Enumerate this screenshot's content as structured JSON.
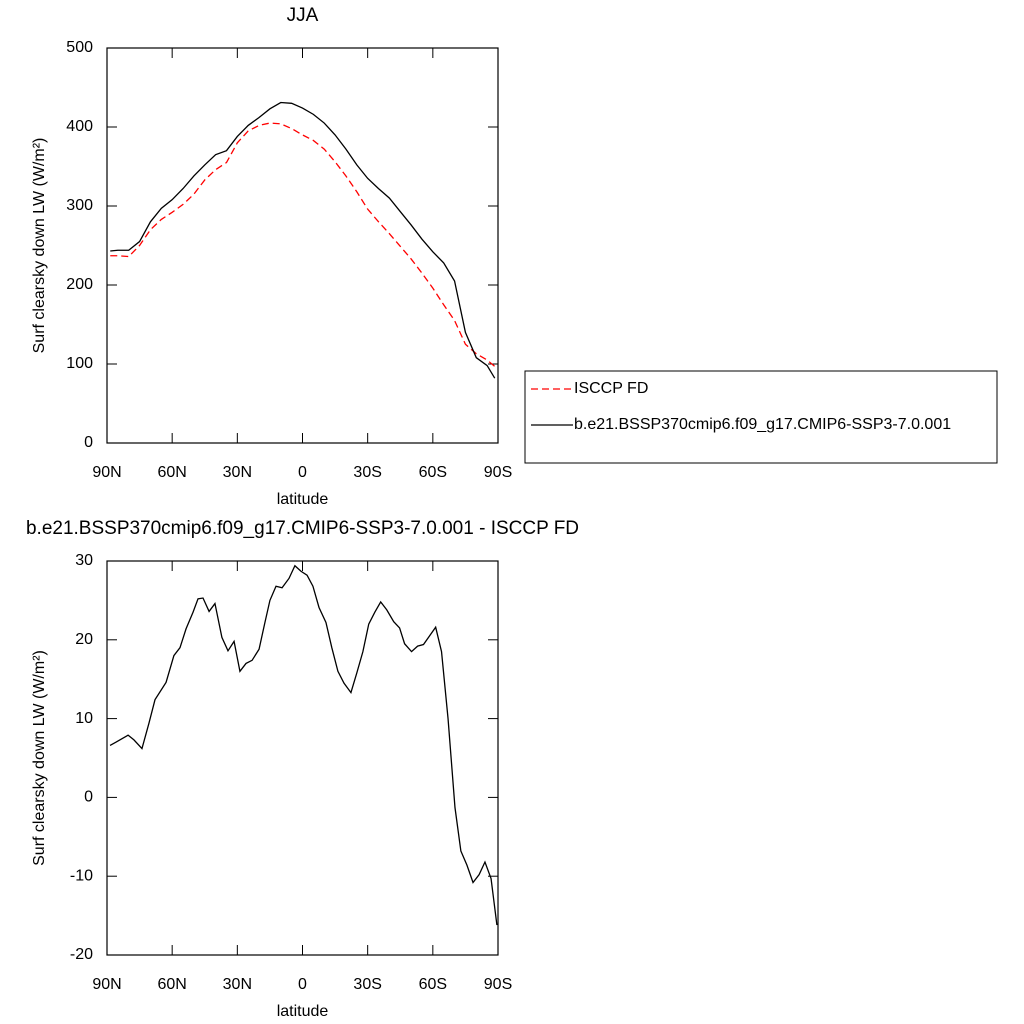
{
  "chart_data": [
    {
      "type": "line",
      "title": "JJA",
      "x_label": "latitude",
      "y_label": "Surf clearsky down LW (W/m²)",
      "x": [
        88.5,
        85,
        80,
        75,
        70,
        65,
        60,
        55,
        50,
        45,
        40,
        35,
        30,
        25,
        20,
        15,
        10,
        5,
        0,
        -5,
        -10,
        -15,
        -20,
        -25,
        -30,
        -35,
        -40,
        -45,
        -50,
        -55,
        -60,
        -65,
        -70,
        -75,
        -80,
        -85,
        -88.5
      ],
      "series": [
        {
          "name": "ISCCP FD",
          "color": "#ff0000",
          "dashed": true,
          "values": [
            237,
            237,
            236,
            250,
            270,
            283,
            292,
            302,
            315,
            333,
            346,
            355,
            380,
            395,
            402,
            405,
            404,
            398,
            390,
            383,
            372,
            356,
            338,
            318,
            296,
            280,
            265,
            249,
            233,
            215,
            196,
            175,
            155,
            125,
            113,
            105,
            97
          ]
        },
        {
          "name": "b.e21.BSSP370cmip6.f09_g17.CMIP6-SSP3-7.0.001",
          "color": "#000000",
          "dashed": false,
          "values": [
            243,
            244,
            244,
            255,
            280,
            297,
            308,
            322,
            338,
            352,
            365,
            370,
            388,
            402,
            412,
            423,
            431,
            430,
            424,
            416,
            405,
            390,
            372,
            352,
            335,
            322,
            310,
            293,
            276,
            258,
            242,
            228,
            205,
            140,
            108,
            98,
            82
          ]
        }
      ],
      "xlim": [
        90,
        -90
      ],
      "xticks": [
        {
          "value": 90,
          "label": "90N"
        },
        {
          "value": 60,
          "label": "60N"
        },
        {
          "value": 30,
          "label": "30N"
        },
        0,
        {
          "value": -30,
          "label": "30S"
        },
        {
          "value": -60,
          "label": "60S"
        },
        {
          "value": -90,
          "label": "90S"
        }
      ],
      "ylim": [
        0,
        500
      ],
      "yticks": [
        0,
        100,
        200,
        300,
        400,
        500
      ],
      "legend": "right"
    },
    {
      "type": "line",
      "title": "b.e21.BSSP370cmip6.f09_g17.CMIP6-SSP3-7.0.001 - ISCCP FD",
      "x_label": "latitude",
      "y_label": "Surf clearsky down LW (W/m²)",
      "x": [
        88.6,
        85.9,
        80.3,
        77.6,
        73.9,
        70.7,
        67.9,
        62.8,
        59.2,
        56.4,
        53.6,
        50.4,
        48.1,
        45.8,
        43,
        40.3,
        37.1,
        34.3,
        31.5,
        28.8,
        26,
        23.2,
        20,
        17.3,
        15,
        12.2,
        9.4,
        6.2,
        3.5,
        0.7,
        -2.1,
        -4.8,
        -7.6,
        -10.8,
        -13.5,
        -16.3,
        -19.1,
        -22.3,
        -25,
        -27.8,
        -30.5,
        -33.3,
        -36,
        -38.8,
        -42,
        -44.7,
        -47,
        -50.2,
        -53,
        -55.7,
        -58.5,
        -61.3,
        -64,
        -67,
        -70.2,
        -72.9,
        -75.7,
        -78.5,
        -81.3,
        -84,
        -86.8,
        -89.5
      ],
      "series": [
        {
          "color": "#000000",
          "dashed": false,
          "values": [
            6.6,
            7,
            7.9,
            7.3,
            6.2,
            9.4,
            12.4,
            14.6,
            18,
            19,
            21.4,
            23.5,
            25.2,
            25.3,
            23.6,
            24.6,
            20.3,
            18.6,
            19.8,
            16,
            17,
            17.4,
            18.8,
            22.2,
            25,
            26.8,
            26.6,
            27.8,
            29.4,
            28.7,
            28.2,
            26.8,
            24.1,
            22.2,
            19,
            16,
            14.5,
            13.3,
            15.8,
            18.5,
            22,
            23.5,
            24.8,
            23.8,
            22.3,
            21.5,
            19.5,
            18.5,
            19.2,
            19.4,
            20.5,
            21.6,
            18.5,
            10,
            -1.3,
            -6.8,
            -8.6,
            -10.8,
            -9.8,
            -8.2,
            -10.3,
            -16.2
          ]
        }
      ],
      "xlim": [
        90,
        -90
      ],
      "xticks": [
        {
          "value": 90,
          "label": "90N"
        },
        {
          "value": 60,
          "label": "60N"
        },
        {
          "value": 30,
          "label": "30N"
        },
        0,
        {
          "value": -30,
          "label": "30S"
        },
        {
          "value": -60,
          "label": "60S"
        },
        {
          "value": -90,
          "label": "90S"
        }
      ],
      "ylim": [
        -20,
        30
      ],
      "yticks": [
        -20,
        -10,
        0,
        10,
        20,
        30
      ]
    }
  ]
}
